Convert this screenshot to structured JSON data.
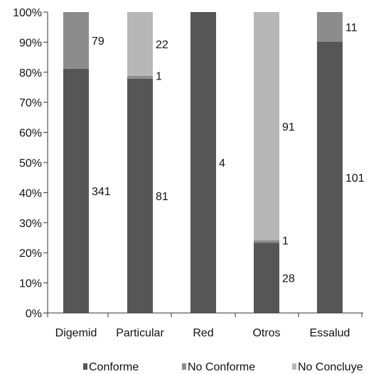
{
  "chart_data": {
    "type": "bar",
    "stacked": true,
    "normalized": true,
    "categories": [
      "Digemid",
      "Particular",
      "Red",
      "Otros",
      "Essalud"
    ],
    "y_ticks": [
      "0%",
      "10%",
      "20%",
      "30%",
      "40%",
      "50%",
      "60%",
      "70%",
      "80%",
      "90%",
      "100%"
    ],
    "ylim": [
      0,
      100
    ],
    "grid": false,
    "legend_position": "bottom",
    "series": [
      {
        "name": "Conforme",
        "color": "#565656",
        "values": [
          341,
          81,
          4,
          28,
          101
        ]
      },
      {
        "name": "No Conforme",
        "color": "#8c8c8c",
        "values": [
          79,
          1,
          0,
          1,
          11
        ]
      },
      {
        "name": "No Concluye",
        "color": "#b7b7b7",
        "values": [
          0,
          22,
          0,
          91,
          0
        ]
      }
    ],
    "data_labels": [
      {
        "category": "Digemid",
        "series": "Conforme",
        "text": "341"
      },
      {
        "category": "Digemid",
        "series": "No Conforme",
        "text": "79"
      },
      {
        "category": "Particular",
        "series": "Conforme",
        "text": "81"
      },
      {
        "category": "Particular",
        "series": "No Conforme",
        "text": "1"
      },
      {
        "category": "Particular",
        "series": "No Concluye",
        "text": "22"
      },
      {
        "category": "Red",
        "series": "Conforme",
        "text": "4"
      },
      {
        "category": "Otros",
        "series": "Conforme",
        "text": "28"
      },
      {
        "category": "Otros",
        "series": "No Conforme",
        "text": "1"
      },
      {
        "category": "Otros",
        "series": "No Concluye",
        "text": "91"
      },
      {
        "category": "Essalud",
        "series": "Conforme",
        "text": "101"
      },
      {
        "category": "Essalud",
        "series": "No Conforme",
        "text": "11"
      }
    ]
  }
}
